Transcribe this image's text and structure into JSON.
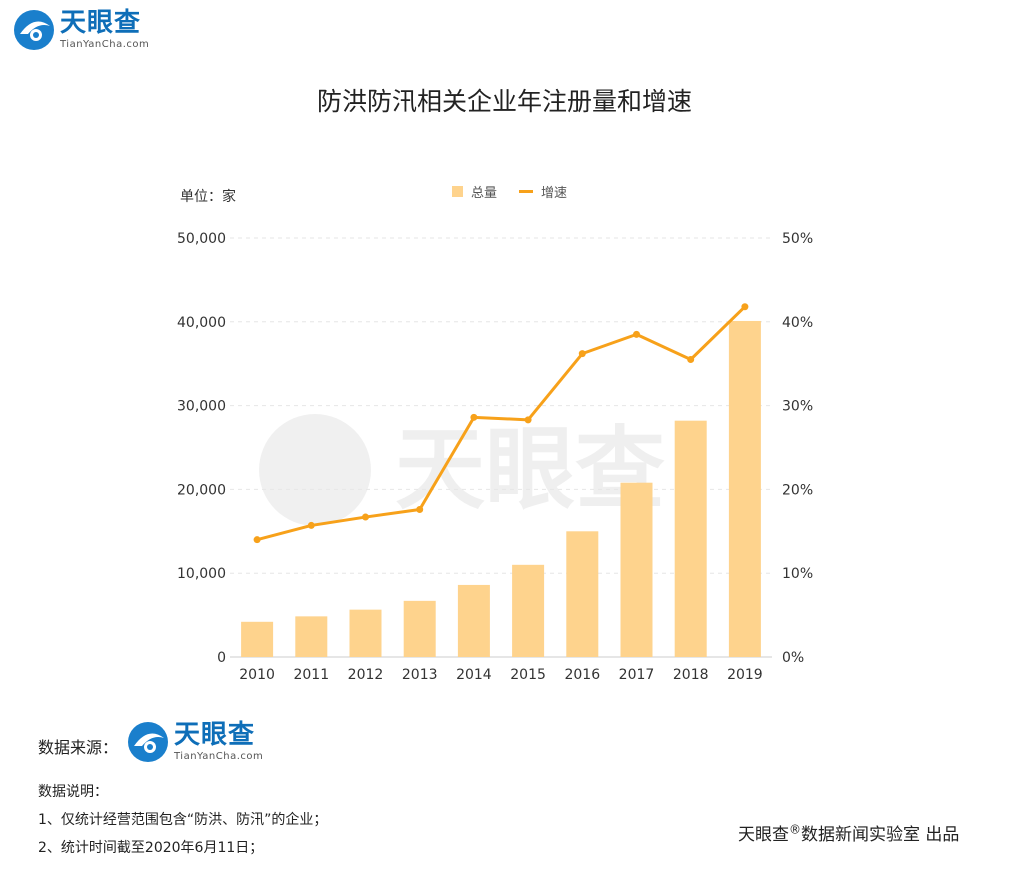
{
  "brand": {
    "name_cn": "天眼查",
    "name_en": "TianYanCha.com",
    "color": "#0e6eb8"
  },
  "chart_data": {
    "type": "bar",
    "title": "防洪防汛相关企业年注册量和增速",
    "unit_label": "单位：家",
    "categories": [
      "2010",
      "2011",
      "2012",
      "2013",
      "2014",
      "2015",
      "2016",
      "2017",
      "2018",
      "2019"
    ],
    "series": [
      {
        "name": "总量",
        "type": "bar",
        "axis": "left",
        "color": "#fed38d",
        "values": [
          4200,
          4850,
          5650,
          6700,
          8600,
          11000,
          15000,
          20800,
          28200,
          40100
        ]
      },
      {
        "name": "增速",
        "type": "line",
        "axis": "right",
        "color": "#f7a11a",
        "values": [
          14.0,
          15.7,
          16.7,
          17.6,
          28.6,
          28.3,
          36.2,
          38.5,
          35.5,
          41.8
        ]
      }
    ],
    "yleft": {
      "ylim": [
        0,
        50000
      ],
      "ticks": [
        "0",
        "10,000",
        "20,000",
        "30,000",
        "40,000",
        "50,000"
      ]
    },
    "yright": {
      "ylim": [
        0,
        50
      ],
      "ticks": [
        "0%",
        "10%",
        "20%",
        "30%",
        "40%",
        "50%"
      ]
    },
    "grid": true,
    "legend_position": "top-center"
  },
  "footer": {
    "source_label": "数据来源：",
    "notes_title": "数据说明：",
    "notes": [
      "1、仅统计经营范围包含“防洪、防汛”的企业；",
      "2、统计时间截至2020年6月11日；"
    ],
    "credit_name": "天眼查",
    "credit_mark": "®",
    "credit_rest": "数据新闻实验室 出品"
  }
}
